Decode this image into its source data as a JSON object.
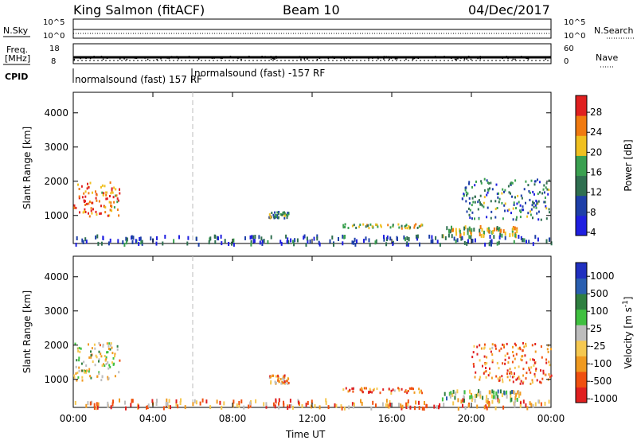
{
  "header": {
    "station": "King Salmon (fitACF)",
    "beam": "Beam 10",
    "date": "04/Dec/2017"
  },
  "strips": {
    "nsky_label": "N.Sky",
    "nsearch_label": "N.Search",
    "freq_label_1": "Freq.",
    "freq_label_2": "[MHz]",
    "nave_label": "Nave",
    "cpid_label": "CPID",
    "cpid_modes": [
      {
        "label": "normalsound (fast) 157 RF",
        "start_hour": 0
      },
      {
        "label": "normalsound (fast) -157 RF",
        "start_hour": 6
      }
    ],
    "noise_left_ticks": [
      "10^5",
      "10^0"
    ],
    "noise_right_ticks": [
      "10^5",
      "10^0"
    ],
    "freq_ticks": [
      "18",
      "8"
    ],
    "nave_ticks": [
      "60",
      "0"
    ]
  },
  "colors": {
    "power_scale": [
      "#1f1fe0",
      "#1e3fa8",
      "#2f6f50",
      "#3aa050",
      "#f0c020",
      "#f07a10",
      "#e02020"
    ],
    "velocity_scale": [
      "#e02020",
      "#f05010",
      "#f09a20",
      "#f5c850",
      "#bdbdbd",
      "#40c040",
      "#2f7f40",
      "#2a5fb0",
      "#2030c0"
    ]
  },
  "chart_data": [
    {
      "type": "heatmap",
      "title": "",
      "xlabel": "Time UT",
      "ylabel": "Slant Range [km]",
      "x_ticks": [
        "00:00",
        "04:00",
        "08:00",
        "12:00",
        "16:00",
        "20:00",
        "00:00"
      ],
      "y_ticks": [
        "1000",
        "2000",
        "3000",
        "4000"
      ],
      "xlim_hours": [
        0,
        24
      ],
      "ylim_km": [
        180,
        4600
      ],
      "colorbar": {
        "label": "Power [dB]",
        "ticks": [
          "28",
          "24",
          "20",
          "16",
          "12",
          "8",
          "4"
        ],
        "range": [
          0,
          30
        ]
      },
      "regions": [
        {
          "t0": 0.0,
          "t1": 2.3,
          "r0": 1000,
          "r1": 2000,
          "level": 0.8
        },
        {
          "t0": 9.8,
          "t1": 10.8,
          "r0": 950,
          "r1": 1150,
          "level": 0.4
        },
        {
          "t0": 13.5,
          "t1": 17.5,
          "r0": 650,
          "r1": 780,
          "level": 0.55
        },
        {
          "t0": 18.5,
          "t1": 22.5,
          "r0": 450,
          "r1": 720,
          "level": 0.6
        },
        {
          "t0": 19.5,
          "t1": 24.0,
          "r0": 900,
          "r1": 2100,
          "level": 0.35
        },
        {
          "t0": 0.0,
          "t1": 24.0,
          "r0": 200,
          "r1": 450,
          "level": 0.25
        }
      ]
    },
    {
      "type": "heatmap",
      "title": "",
      "xlabel": "Time UT",
      "ylabel": "Slant Range [km]",
      "x_ticks": [
        "00:00",
        "04:00",
        "08:00",
        "12:00",
        "16:00",
        "20:00",
        "00:00"
      ],
      "y_ticks": [
        "1000",
        "2000",
        "3000",
        "4000"
      ],
      "xlim_hours": [
        0,
        24
      ],
      "ylim_km": [
        180,
        4600
      ],
      "colorbar": {
        "label": "Velocity [m s",
        "label_sup": "-1",
        "label_end": "]",
        "ticks": [
          "1000",
          "500",
          "100",
          "25",
          "-25",
          "-100",
          "-500",
          "-1000"
        ],
        "range": [
          -1200,
          1200
        ]
      },
      "regions": [
        {
          "t0": 0.0,
          "t1": 2.3,
          "r0": 1000,
          "r1": 2100,
          "level": 0.45
        },
        {
          "t0": 9.8,
          "t1": 10.8,
          "r0": 900,
          "r1": 1150,
          "level": 0.3
        },
        {
          "t0": 13.5,
          "t1": 17.5,
          "r0": 620,
          "r1": 780,
          "level": 0.2
        },
        {
          "t0": 18.5,
          "t1": 22.5,
          "r0": 400,
          "r1": 720,
          "level": 0.55
        },
        {
          "t0": 20.0,
          "t1": 24.0,
          "r0": 900,
          "r1": 2100,
          "level": 0.2
        },
        {
          "t0": 0.0,
          "t1": 24.0,
          "r0": 200,
          "r1": 450,
          "level": 0.25
        }
      ]
    }
  ]
}
